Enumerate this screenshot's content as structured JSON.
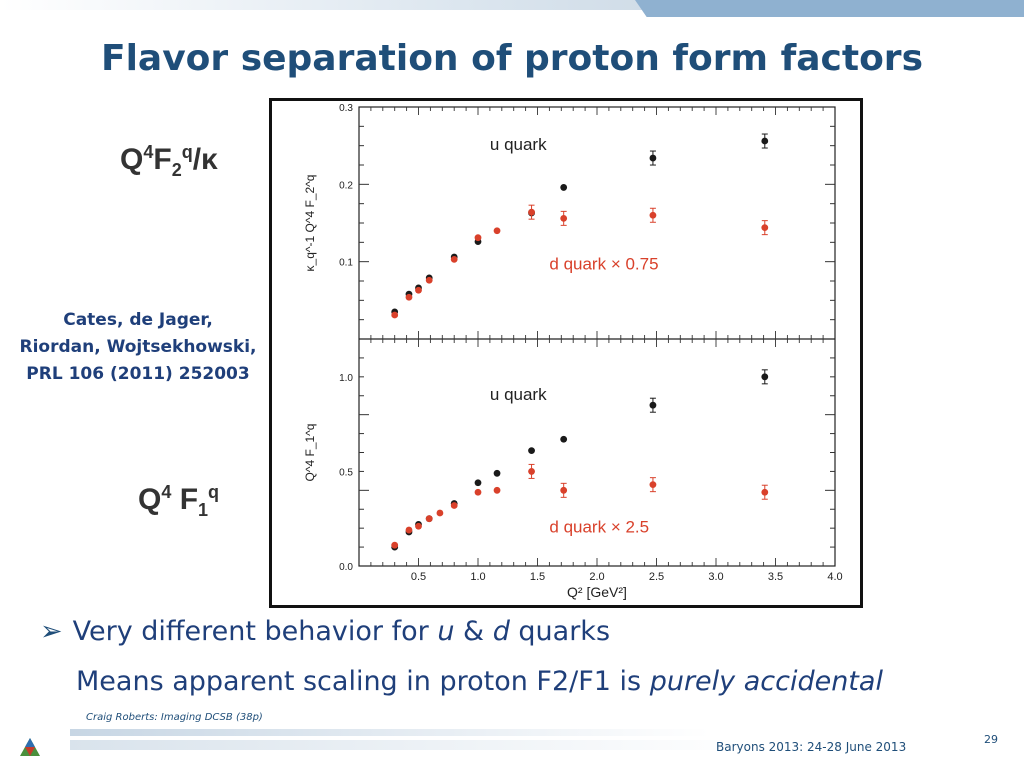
{
  "slide": {
    "title": "Flavor separation of proton form factors",
    "label_top": {
      "base": "Q",
      "exp": "4",
      "mid": "F",
      "sub": "2",
      "exp2": "q",
      "tail": "/κ"
    },
    "label_bottom": {
      "base": "Q",
      "exp": "4",
      "mid": " F",
      "sub": "1",
      "exp2": "q"
    },
    "citation": [
      "Cates, de Jager,",
      "Riordan, Wojtsekhowski,",
      "PRL 106 (2011) 252003"
    ],
    "bullet": {
      "arrow": "➢",
      "pre": "Very different behavior for ",
      "u": "u",
      "amp": " & ",
      "d": "d",
      "post": " quarks"
    },
    "second_line": {
      "pre": "Means apparent scaling in proton F2/F1 is ",
      "em": "purely accidental"
    },
    "footer": {
      "credit": "Craig Roberts: Imaging DCSB (38p)",
      "event": "Baryons 2013: 24-28 June 2013",
      "page": "29"
    }
  },
  "colors": {
    "u_quark": "#1a1a1a",
    "d_quark": "#d9412b",
    "title": "#1f4e79",
    "text": "#1f3f7a"
  },
  "chart_data": [
    {
      "type": "scatter",
      "panel": "top",
      "ylabel": "κ_q^-1 Q^4 F_2^q",
      "ylim": [
        0.0,
        0.3
      ],
      "yticks": [
        "0.1",
        "0.2",
        "0.3"
      ],
      "xlim": [
        0.0,
        4.0
      ],
      "annotations": [
        "u quark",
        "d quark × 0.75"
      ],
      "series": [
        {
          "name": "u quark",
          "color": "#1a1a1a",
          "points": [
            [
              0.3,
              0.035
            ],
            [
              0.42,
              0.058
            ],
            [
              0.5,
              0.066
            ],
            [
              0.59,
              0.079
            ],
            [
              0.8,
              0.106
            ],
            [
              1.0,
              0.126
            ],
            [
              1.45,
              0.163
            ],
            [
              1.72,
              0.196
            ],
            [
              2.47,
              0.234
            ],
            [
              3.41,
              0.256
            ]
          ]
        },
        {
          "name": "d quark × 0.75",
          "color": "#d9412b",
          "points": [
            [
              0.3,
              0.031
            ],
            [
              0.42,
              0.054
            ],
            [
              0.5,
              0.063
            ],
            [
              0.59,
              0.076
            ],
            [
              0.8,
              0.103
            ],
            [
              1.0,
              0.131
            ],
            [
              1.16,
              0.14
            ],
            [
              1.45,
              0.164
            ],
            [
              1.72,
              0.156
            ],
            [
              2.47,
              0.16
            ],
            [
              3.41,
              0.144
            ]
          ]
        }
      ]
    },
    {
      "type": "scatter",
      "panel": "bottom",
      "ylabel": "Q^4 F_1^q",
      "xlabel": "Q² [GeV²]",
      "ylim": [
        0.0,
        1.2
      ],
      "yticks": [
        "0.0",
        "0.5",
        "1.0"
      ],
      "xlim": [
        0.0,
        4.0
      ],
      "xticks": [
        "0.5",
        "1.0",
        "1.5",
        "2.0",
        "2.5",
        "3.0",
        "3.5",
        "4.0"
      ],
      "annotations": [
        "u quark",
        "d quark × 2.5"
      ],
      "series": [
        {
          "name": "u quark",
          "color": "#1a1a1a",
          "points": [
            [
              0.3,
              0.1
            ],
            [
              0.42,
              0.18
            ],
            [
              0.5,
              0.22
            ],
            [
              0.59,
              0.25
            ],
            [
              0.8,
              0.33
            ],
            [
              1.0,
              0.44
            ],
            [
              1.16,
              0.49
            ],
            [
              1.45,
              0.61
            ],
            [
              1.72,
              0.67
            ],
            [
              2.47,
              0.85
            ],
            [
              3.41,
              1.0
            ]
          ]
        },
        {
          "name": "d quark × 2.5",
          "color": "#d9412b",
          "points": [
            [
              0.3,
              0.11
            ],
            [
              0.42,
              0.19
            ],
            [
              0.5,
              0.21
            ],
            [
              0.59,
              0.25
            ],
            [
              0.68,
              0.28
            ],
            [
              0.8,
              0.32
            ],
            [
              1.0,
              0.39
            ],
            [
              1.16,
              0.4
            ],
            [
              1.45,
              0.5
            ],
            [
              1.72,
              0.4
            ],
            [
              2.47,
              0.43
            ],
            [
              3.41,
              0.39
            ]
          ]
        }
      ]
    }
  ]
}
